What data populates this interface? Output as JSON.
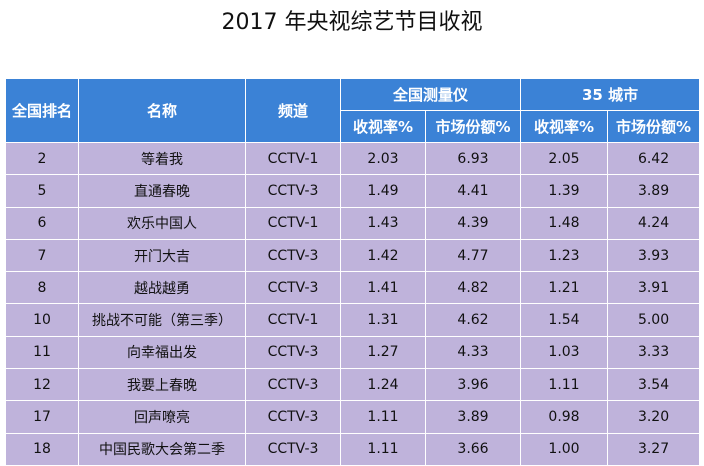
{
  "title": "2017 年央视综艺节目收视",
  "table": {
    "header": [
      "全国排名",
      "名称",
      "频道"
    ],
    "groups": [
      {
        "label": "全国测量仪",
        "columns": [
          "收视率%",
          "市场份额%"
        ]
      },
      {
        "label": "35 城市",
        "columns": [
          "收视率%",
          "市场份额%"
        ]
      }
    ],
    "rows": [
      [
        "2",
        "等着我",
        "CCTV-1",
        "2.03",
        "6.93",
        "2.05",
        "6.42"
      ],
      [
        "5",
        "直通春晚",
        "CCTV-3",
        "1.49",
        "4.41",
        "1.39",
        "3.89"
      ],
      [
        "6",
        "欢乐中国人",
        "CCTV-1",
        "1.43",
        "4.39",
        "1.48",
        "4.24"
      ],
      [
        "7",
        "开门大吉",
        "CCTV-3",
        "1.42",
        "4.77",
        "1.23",
        "3.93"
      ],
      [
        "8",
        "越战越勇",
        "CCTV-3",
        "1.41",
        "4.82",
        "1.21",
        "3.91"
      ],
      [
        "10",
        "挑战不可能（第三季）",
        "CCTV-1",
        "1.31",
        "4.62",
        "1.54",
        "5.00"
      ],
      [
        "11",
        "向幸福出发",
        "CCTV-3",
        "1.27",
        "4.33",
        "1.03",
        "3.33"
      ],
      [
        "12",
        "我要上春晚",
        "CCTV-3",
        "1.24",
        "3.96",
        "1.11",
        "3.54"
      ],
      [
        "17",
        "回声嘹亮",
        "CCTV-3",
        "1.11",
        "3.89",
        "0.98",
        "3.20"
      ],
      [
        "18",
        "中国民歌大会第二季",
        "CCTV-3",
        "1.11",
        "3.66",
        "1.00",
        "3.27"
      ]
    ]
  }
}
